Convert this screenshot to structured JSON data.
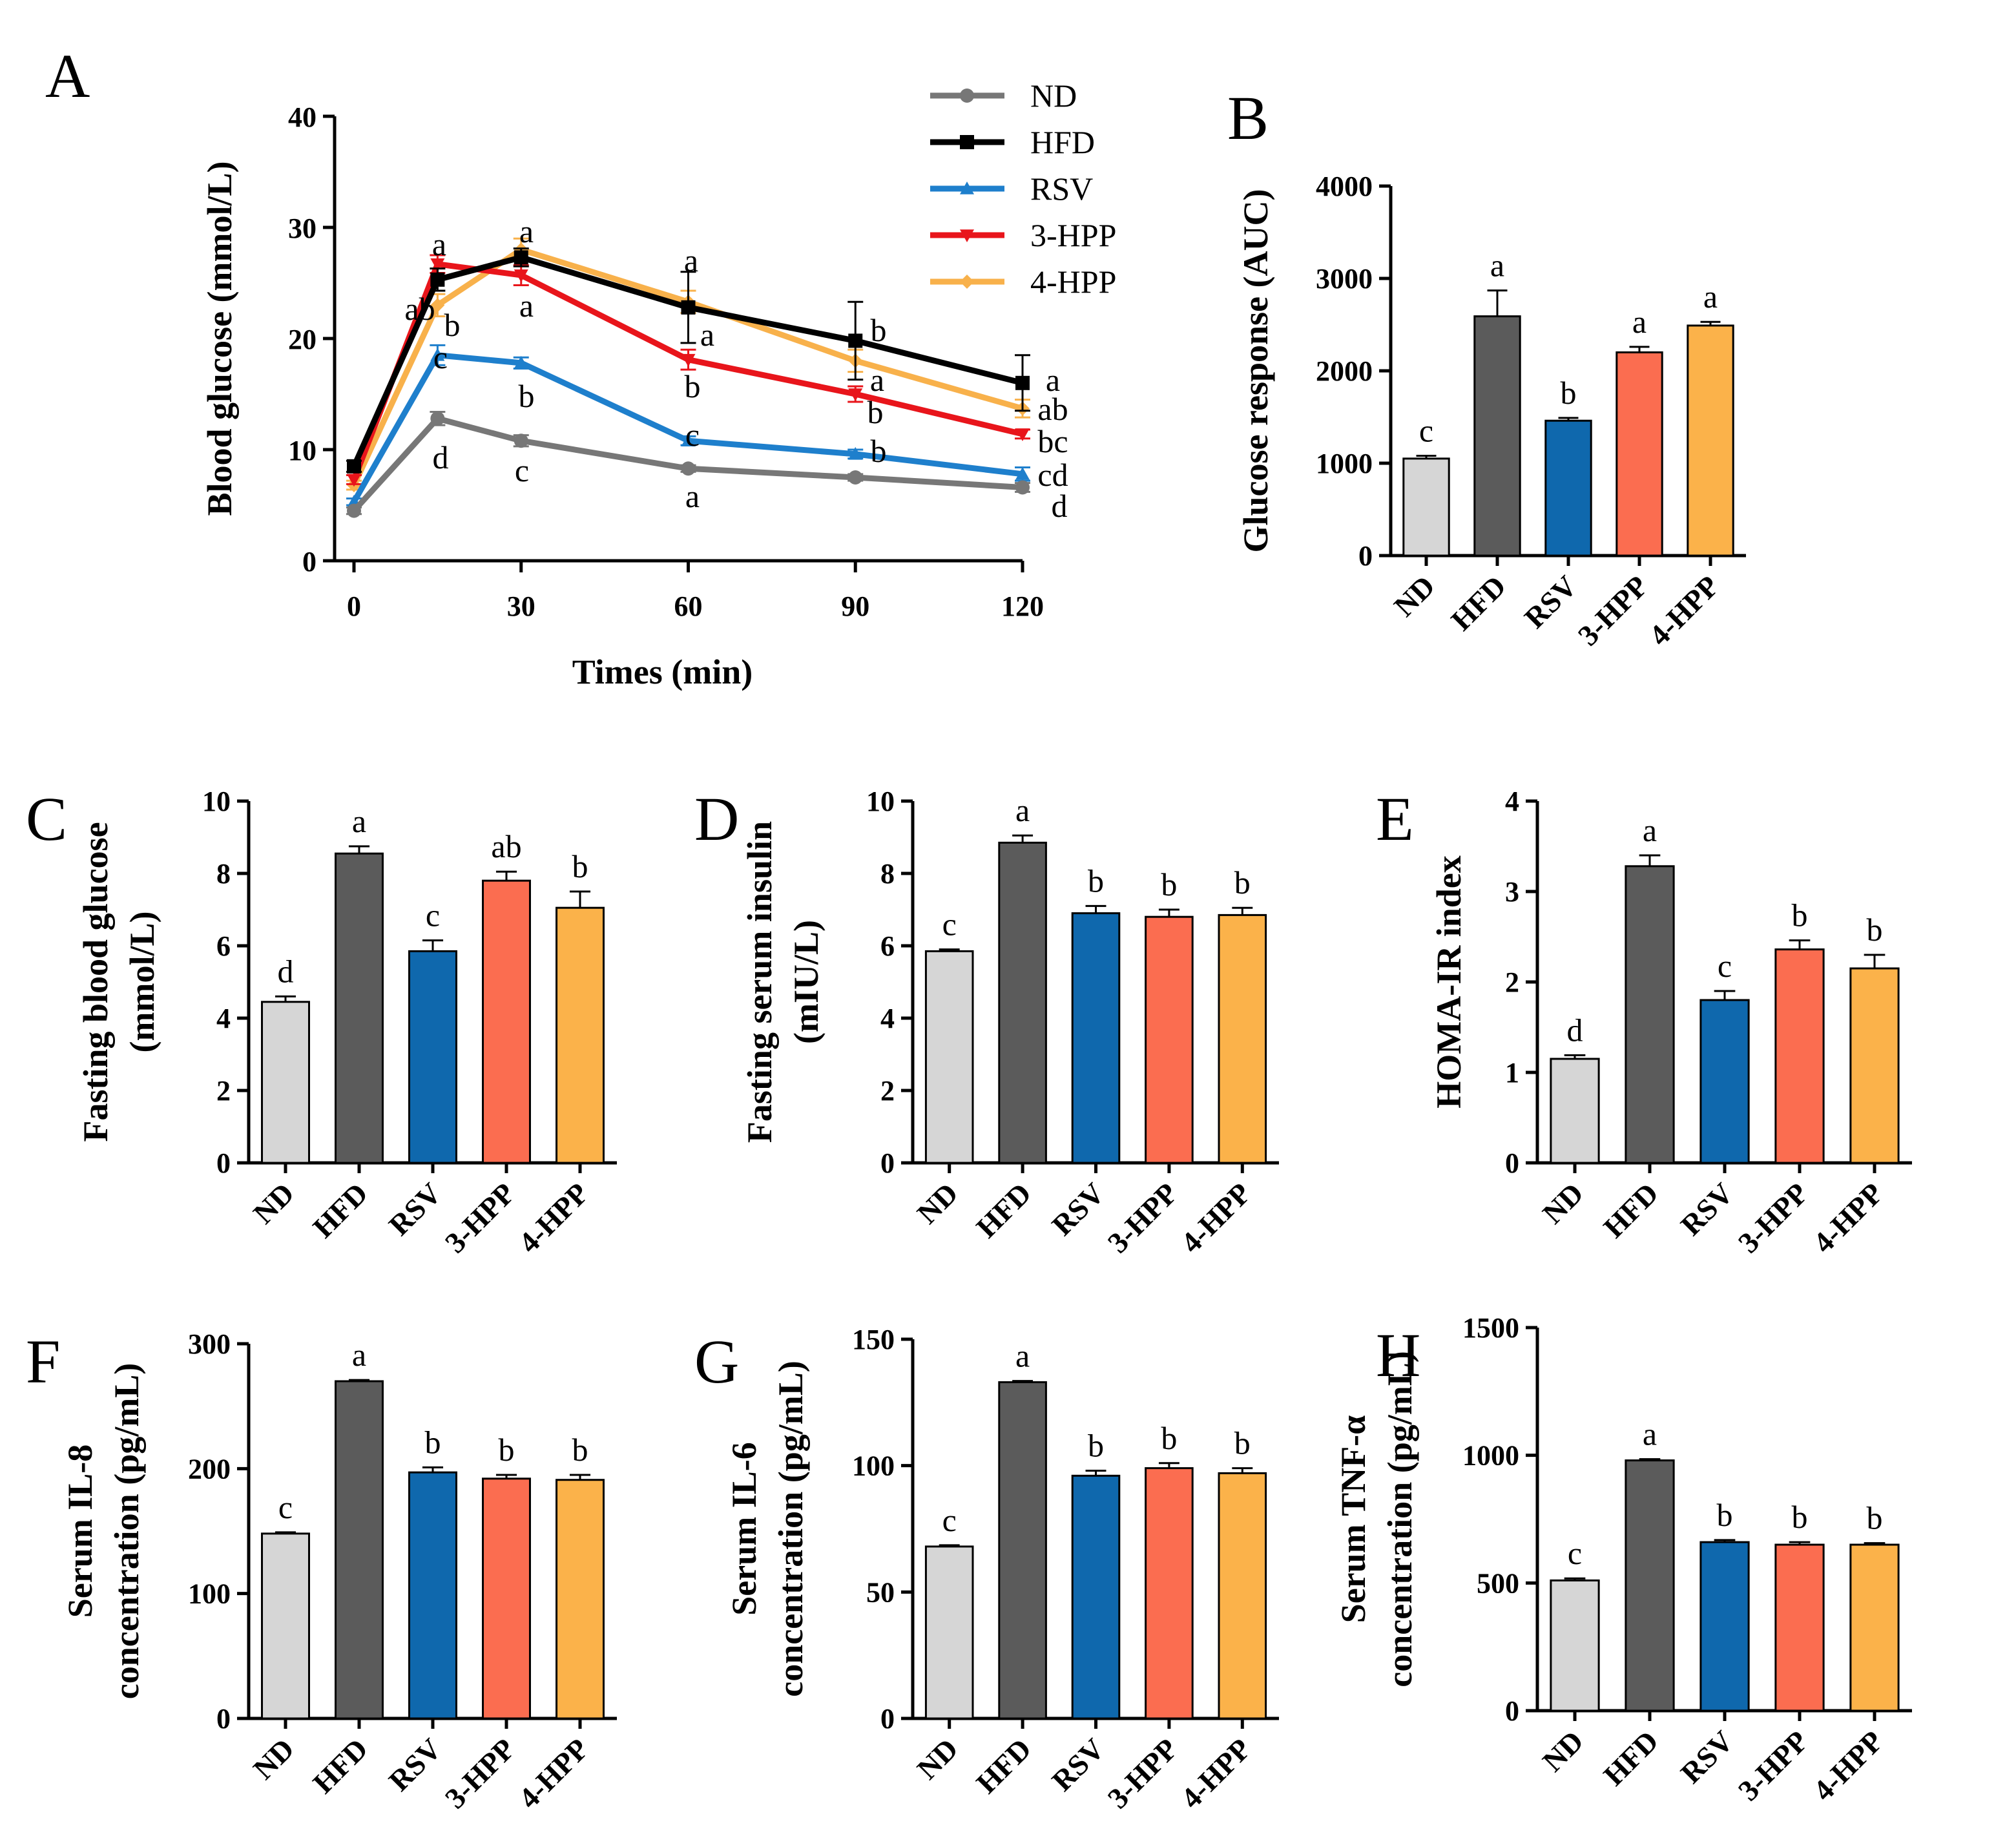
{
  "colors": {
    "ND": "#d6d6d6",
    "HFD": "#5b5b5b",
    "RSV": "#0f68ad",
    "3-HPP": "#fb6d50",
    "4-HPP": "#fbb24a",
    "line_ND": "#777777",
    "line_HFD": "#000000",
    "line_RSV": "#1e7fcc",
    "line_3-HPP": "#e8151b",
    "line_4-HPP": "#f8b14b"
  },
  "chart_data": [
    {
      "id": "A",
      "type": "line",
      "panel_label": "A",
      "xlabel": "Times (min)",
      "ylabel": "Blood glucose (mmol/L)",
      "xlim": [
        0,
        120
      ],
      "ylim": [
        0,
        40
      ],
      "xticks": [
        "0",
        "30",
        "60",
        "90",
        "120"
      ],
      "yticks": [
        "0",
        "10",
        "20",
        "30",
        "40"
      ],
      "x": [
        0,
        15,
        30,
        60,
        90,
        120
      ],
      "series": [
        {
          "name": "ND",
          "values": [
            4.5,
            12.8,
            10.8,
            8.3,
            7.5,
            6.6
          ],
          "errors": [
            0.3,
            0.6,
            0.5,
            0.3,
            0.3,
            0.4
          ],
          "marker": "circle"
        },
        {
          "name": "HFD",
          "values": [
            8.5,
            25.3,
            27.3,
            22.8,
            19.8,
            16.0
          ],
          "errors": [
            0.5,
            1.0,
            0.8,
            3.2,
            3.5,
            2.5
          ],
          "marker": "square"
        },
        {
          "name": "RSV",
          "values": [
            5.3,
            18.5,
            17.8,
            10.8,
            9.6,
            7.8
          ],
          "errors": [
            0.3,
            0.9,
            0.5,
            0.4,
            0.4,
            0.6
          ],
          "marker": "triangle"
        },
        {
          "name": "3-HPP",
          "values": [
            7.3,
            26.7,
            25.7,
            18.1,
            15.0,
            11.4
          ],
          "errors": [
            0.4,
            0.8,
            0.9,
            0.9,
            0.7,
            0.4
          ],
          "marker": "triangle-down"
        },
        {
          "name": "4-HPP",
          "values": [
            6.8,
            23.0,
            28.0,
            23.3,
            18.0,
            13.7
          ],
          "errors": [
            0.4,
            1.0,
            1.0,
            1.0,
            1.0,
            0.8
          ],
          "marker": "diamond"
        }
      ],
      "annotations": [
        "ab",
        "a",
        "b",
        "c",
        "d",
        "a",
        "a",
        "b",
        "c",
        "a",
        "a",
        "b",
        "c",
        "a",
        "a",
        "b",
        "b",
        "a",
        "ab",
        "bc",
        "cd",
        "d"
      ]
    },
    {
      "id": "B",
      "type": "bar",
      "panel_label": "B",
      "ylabel": "Glucose response (AUC)",
      "ylim": [
        0,
        4000
      ],
      "yticks": [
        "0",
        "1000",
        "2000",
        "3000",
        "4000"
      ],
      "categories": [
        "ND",
        "HFD",
        "RSV",
        "3-HPP",
        "4-HPP"
      ],
      "values": [
        1050,
        2590,
        1460,
        2200,
        2490
      ],
      "errors": [
        30,
        280,
        30,
        60,
        40
      ],
      "letters": [
        "c",
        "a",
        "b",
        "a",
        "a"
      ]
    },
    {
      "id": "C",
      "type": "bar",
      "panel_label": "C",
      "ylabel": [
        "Fasting blood glucose",
        "(mmol/L)"
      ],
      "ylim": [
        0,
        10
      ],
      "yticks": [
        "0",
        "2",
        "4",
        "6",
        "8",
        "10"
      ],
      "categories": [
        "ND",
        "HFD",
        "RSV",
        "3-HPP",
        "4-HPP"
      ],
      "values": [
        4.45,
        8.55,
        5.85,
        7.8,
        7.05
      ],
      "errors": [
        0.15,
        0.2,
        0.3,
        0.25,
        0.45
      ],
      "letters": [
        "d",
        "a",
        "c",
        "ab",
        "b"
      ]
    },
    {
      "id": "D",
      "type": "bar",
      "panel_label": "D",
      "ylabel": [
        "Fasting serum insulin",
        "(mIU/L)"
      ],
      "ylim": [
        0,
        10
      ],
      "yticks": [
        "0",
        "2",
        "4",
        "6",
        "8",
        "10"
      ],
      "categories": [
        "ND",
        "HFD",
        "RSV",
        "3-HPP",
        "4-HPP"
      ],
      "values": [
        5.85,
        8.85,
        6.9,
        6.8,
        6.85
      ],
      "errors": [
        0.05,
        0.2,
        0.2,
        0.2,
        0.2
      ],
      "letters": [
        "c",
        "a",
        "b",
        "b",
        "b"
      ]
    },
    {
      "id": "E",
      "type": "bar",
      "panel_label": "E",
      "ylabel": [
        "HOMA-IR index"
      ],
      "ylim": [
        0,
        4
      ],
      "yticks": [
        "0",
        "1",
        "2",
        "3",
        "4"
      ],
      "categories": [
        "ND",
        "HFD",
        "RSV",
        "3-HPP",
        "4-HPP"
      ],
      "values": [
        1.15,
        3.28,
        1.8,
        2.36,
        2.15
      ],
      "errors": [
        0.04,
        0.12,
        0.1,
        0.1,
        0.15
      ],
      "letters": [
        "d",
        "a",
        "c",
        "b",
        "b"
      ]
    },
    {
      "id": "F",
      "type": "bar",
      "panel_label": "F",
      "ylabel": [
        "Serum IL-8",
        "concentration (pg/mL)"
      ],
      "ylim": [
        0,
        300
      ],
      "yticks": [
        "0",
        "100",
        "200",
        "300"
      ],
      "categories": [
        "ND",
        "HFD",
        "RSV",
        "3-HPP",
        "4-HPP"
      ],
      "values": [
        148,
        270,
        197,
        192,
        191
      ],
      "errors": [
        1,
        1,
        4,
        3,
        4
      ],
      "letters": [
        "c",
        "a",
        "b",
        "b",
        "b"
      ]
    },
    {
      "id": "G",
      "type": "bar",
      "panel_label": "G",
      "ylabel": [
        "Serum IL-6",
        "concentration (pg/mL)"
      ],
      "ylim": [
        0,
        150
      ],
      "yticks": [
        "0",
        "50",
        "100",
        "150"
      ],
      "categories": [
        "ND",
        "HFD",
        "RSV",
        "3-HPP",
        "4-HPP"
      ],
      "values": [
        68,
        133,
        96,
        99,
        97
      ],
      "errors": [
        0.5,
        0.5,
        2,
        2,
        2
      ],
      "letters": [
        "c",
        "a",
        "b",
        "b",
        "b"
      ]
    },
    {
      "id": "H",
      "type": "bar",
      "panel_label": "H",
      "ylabel": [
        "Serum TNF-α",
        "concentration (pg/mL)"
      ],
      "ylim": [
        0,
        1500
      ],
      "yticks": [
        "0",
        "500",
        "1000",
        "1500"
      ],
      "categories": [
        "ND",
        "HFD",
        "RSV",
        "3-HPP",
        "4-HPP"
      ],
      "values": [
        510,
        980,
        660,
        650,
        650
      ],
      "errors": [
        8,
        5,
        8,
        10,
        6
      ],
      "letters": [
        "c",
        "a",
        "b",
        "b",
        "b"
      ]
    }
  ]
}
